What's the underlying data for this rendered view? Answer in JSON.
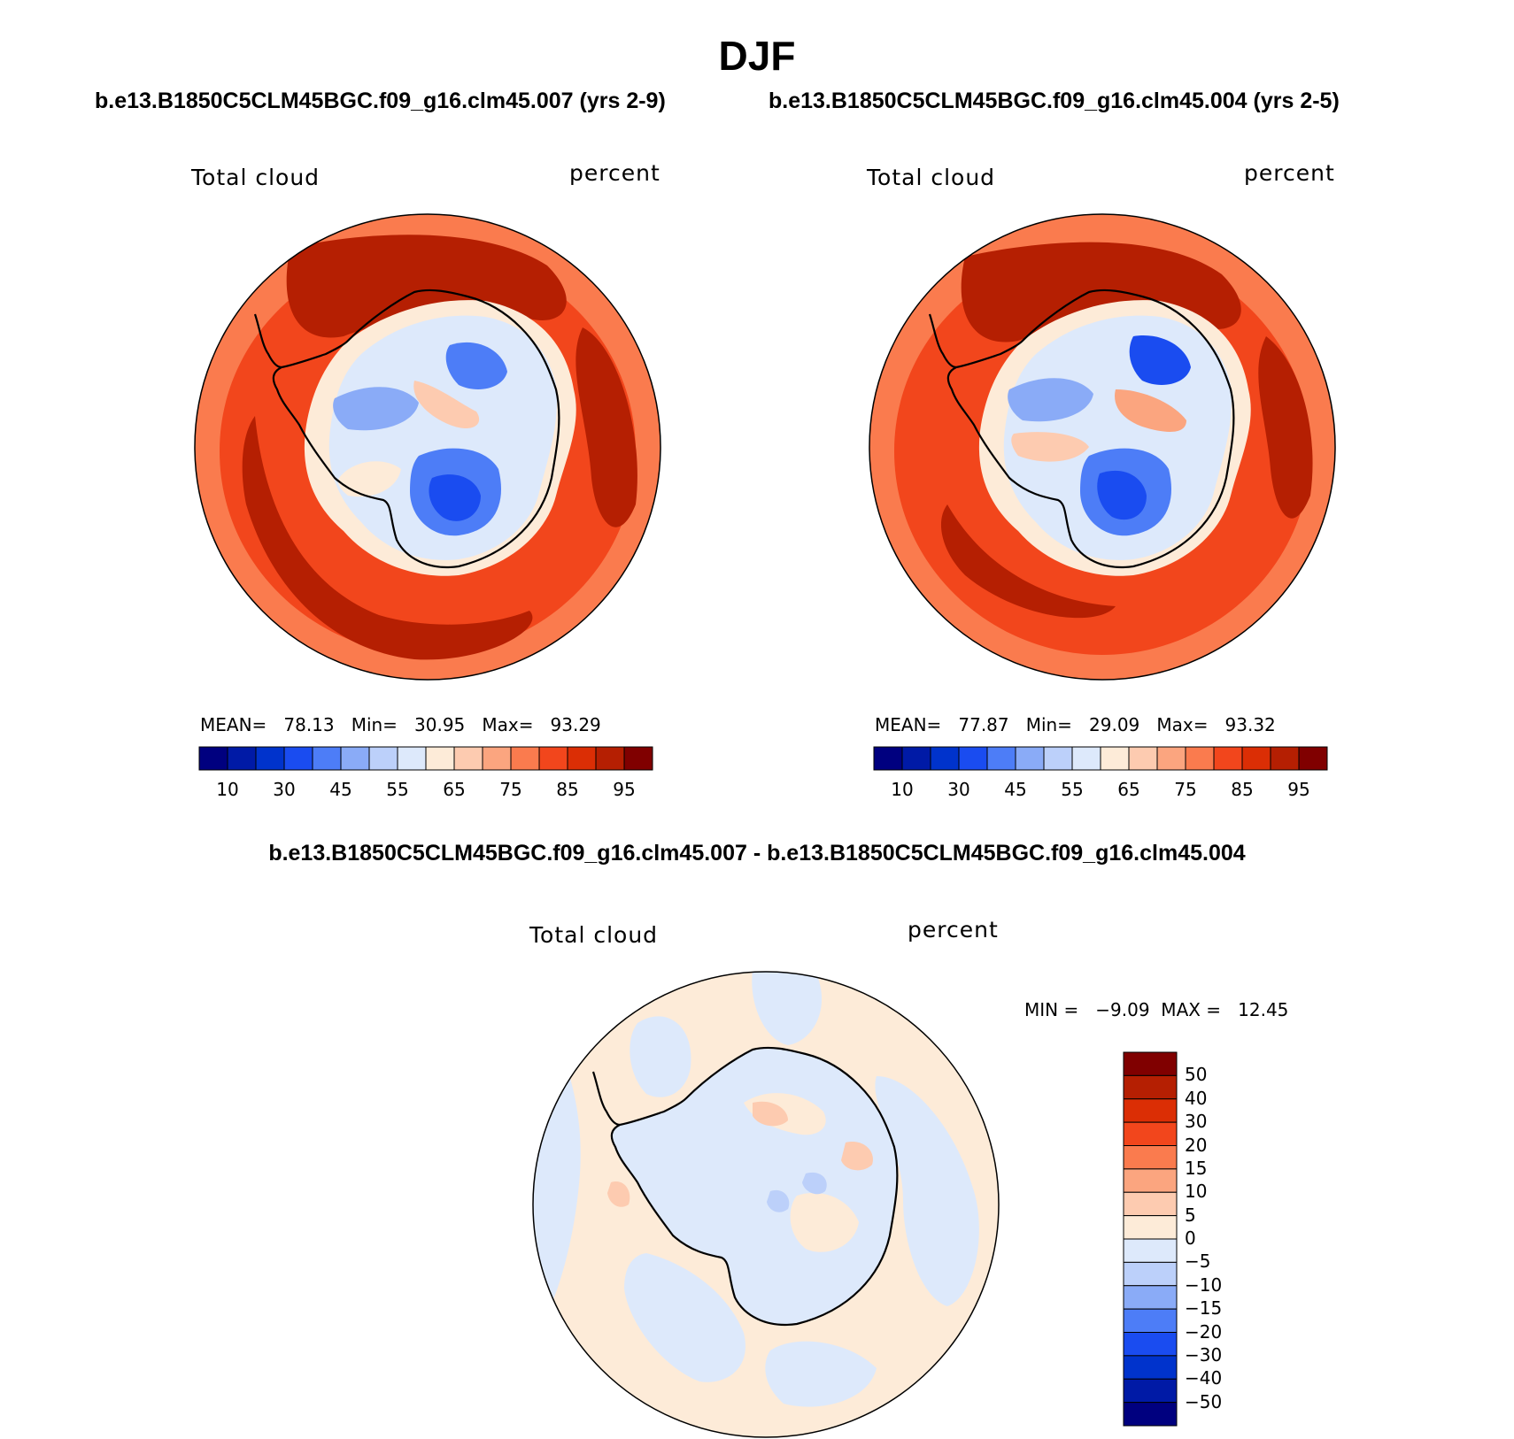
{
  "title": "DJF",
  "panels": [
    {
      "case_title": "b.e13.B1850C5CLM45BGC.f09_g16.clm45.007 (yrs 2-9)",
      "variable": "Total cloud",
      "units": "percent",
      "stats_text": "MEAN=   78.13   Min=   30.95   Max=   93.29",
      "stats": {
        "mean": 78.13,
        "min": 30.95,
        "max": 93.29
      }
    },
    {
      "case_title": "b.e13.B1850C5CLM45BGC.f09_g16.clm45.004 (yrs 2-5)",
      "variable": "Total cloud",
      "units": "percent",
      "stats_text": "MEAN=   77.87   Min=   29.09   Max=   93.32",
      "stats": {
        "mean": 77.87,
        "min": 29.09,
        "max": 93.32
      }
    }
  ],
  "colorbar": {
    "colors": [
      "#00007f",
      "#001aa6",
      "#0033cc",
      "#1a4cf0",
      "#4d7df7",
      "#8aabf7",
      "#bcd0fa",
      "#dde9fb",
      "#fdebd8",
      "#fdcbb0",
      "#fba57f",
      "#fa7b4e",
      "#f2461c",
      "#db2e05",
      "#b51f02",
      "#800000"
    ],
    "tick_labels": [
      "10",
      "30",
      "45",
      "55",
      "65",
      "75",
      "85",
      "95"
    ]
  },
  "difference": {
    "title": "b.e13.B1850C5CLM45BGC.f09_g16.clm45.007 - b.e13.B1850C5CLM45BGC.f09_g16.clm45.004",
    "variable": "Total cloud",
    "units": "percent",
    "minmax_text": "MIN =   −9.09  MAX =   12.45",
    "stats": {
      "min": -9.09,
      "max": 12.45
    },
    "colorbar": {
      "colors": [
        "#800000",
        "#b51f02",
        "#db2e05",
        "#f2461c",
        "#fa7b4e",
        "#fba57f",
        "#fdcbb0",
        "#fdebd8",
        "#dde9fb",
        "#bcd0fa",
        "#8aabf7",
        "#4d7df7",
        "#1a4cf0",
        "#0033cc",
        "#001aa6",
        "#00007f"
      ],
      "tick_labels": [
        "50",
        "40",
        "30",
        "20",
        "15",
        "10",
        "5",
        "0",
        "−5",
        "−10",
        "−15",
        "−20",
        "−30",
        "−40",
        "−50"
      ]
    }
  }
}
